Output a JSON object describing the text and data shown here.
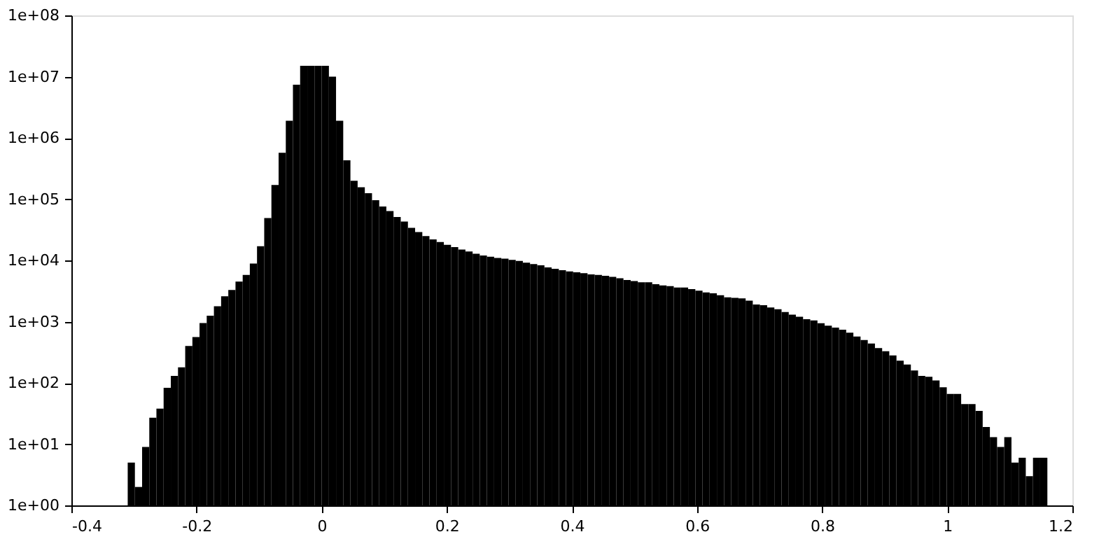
{
  "chart_data": {
    "type": "histogram",
    "bins": [
      -0.31,
      -0.2985,
      -0.287,
      -0.2755,
      -0.2641,
      -0.2526,
      -0.2411,
      -0.2296,
      -0.2181,
      -0.2066,
      -0.1952,
      -0.1837,
      -0.1722,
      -0.1607,
      -0.1492,
      -0.1377,
      -0.1262,
      -0.1148,
      -0.1033,
      -0.0918,
      -0.0803,
      -0.0688,
      -0.0573,
      -0.0459,
      -0.0344,
      -0.0229,
      -0.0114,
      0.0001,
      0.0116,
      0.023,
      0.0345,
      0.046,
      0.0575,
      0.069,
      0.0805,
      0.092,
      0.1034,
      0.1149,
      0.1264,
      0.1379,
      0.1494,
      0.1609,
      0.1723,
      0.1838,
      0.1953,
      0.2068,
      0.2183,
      0.2298,
      0.2413,
      0.2527,
      0.2642,
      0.2757,
      0.2872,
      0.2987,
      0.3102,
      0.3216,
      0.3331,
      0.3446,
      0.3561,
      0.3676,
      0.3791,
      0.3905,
      0.402,
      0.4135,
      0.425,
      0.4365,
      0.448,
      0.4595,
      0.4709,
      0.4824,
      0.4939,
      0.5054,
      0.5169,
      0.5284,
      0.5398,
      0.5513,
      0.5628,
      0.5743,
      0.5858,
      0.5973,
      0.6088,
      0.6202,
      0.6317,
      0.6432,
      0.6547,
      0.6662,
      0.6777,
      0.6891,
      0.7006,
      0.7121,
      0.7236,
      0.7351,
      0.7466,
      0.758,
      0.7695,
      0.781,
      0.7925,
      0.804,
      0.8155,
      0.827,
      0.8384,
      0.8499,
      0.8614,
      0.8729,
      0.8844,
      0.8959,
      0.9073,
      0.9188,
      0.9303,
      0.9418,
      0.9533,
      0.9648,
      0.9763,
      0.9877,
      0.9992,
      1.0107,
      1.0222,
      1.0337,
      1.0452,
      1.0566,
      1.0681,
      1.0796,
      1.0911,
      1.1026,
      1.1141,
      1.1255,
      1.137,
      1.1485,
      1.16
    ],
    "values": [
      5,
      2,
      9,
      27,
      38,
      83,
      130,
      180,
      400,
      560,
      950,
      1250,
      1780,
      2600,
      3300,
      4500,
      5800,
      8900,
      17000,
      49000,
      170000,
      570000,
      1900000,
      7400000,
      15000000,
      15000000,
      15000000,
      15000000,
      10000000,
      1900000,
      430000,
      200000,
      156000,
      125000,
      96000,
      76000,
      64000,
      51000,
      43000,
      34000,
      29000,
      25000,
      22000,
      20000,
      18000,
      16500,
      15000,
      14000,
      12800,
      12000,
      11500,
      11000,
      10700,
      10200,
      9800,
      9200,
      8700,
      8300,
      7700,
      7300,
      6900,
      6600,
      6400,
      6200,
      5900,
      5800,
      5600,
      5400,
      5100,
      4800,
      4600,
      4400,
      4400,
      4100,
      3900,
      3800,
      3600,
      3600,
      3400,
      3200,
      3000,
      2900,
      2700,
      2500,
      2450,
      2400,
      2200,
      1900,
      1850,
      1700,
      1600,
      1440,
      1300,
      1200,
      1100,
      1050,
      940,
      860,
      800,
      740,
      660,
      570,
      500,
      440,
      370,
      330,
      280,
      230,
      200,
      160,
      130,
      126,
      110,
      85,
      66,
      66,
      45,
      45,
      35,
      19,
      13,
      9,
      13,
      5,
      6,
      3,
      6,
      6
    ],
    "color": "#000000",
    "xlim": [
      -0.4,
      1.2
    ],
    "xticks": [
      -0.4,
      -0.2,
      0,
      0.2,
      0.4,
      0.6,
      0.8,
      1,
      1.2
    ],
    "ylim": [
      1,
      100000000
    ],
    "yticks": [
      {
        "value": 1,
        "label": "1e+00"
      },
      {
        "value": 10,
        "label": "1e+01"
      },
      {
        "value": 100,
        "label": "1e+02"
      },
      {
        "value": 1000,
        "label": "1e+03"
      },
      {
        "value": 10000,
        "label": "1e+04"
      },
      {
        "value": 100000,
        "label": "1e+05"
      },
      {
        "value": 1000000,
        "label": "1e+06"
      },
      {
        "value": 10000000,
        "label": "1e+07"
      },
      {
        "value": 100000000,
        "label": "1e+08"
      }
    ],
    "log": true
  }
}
